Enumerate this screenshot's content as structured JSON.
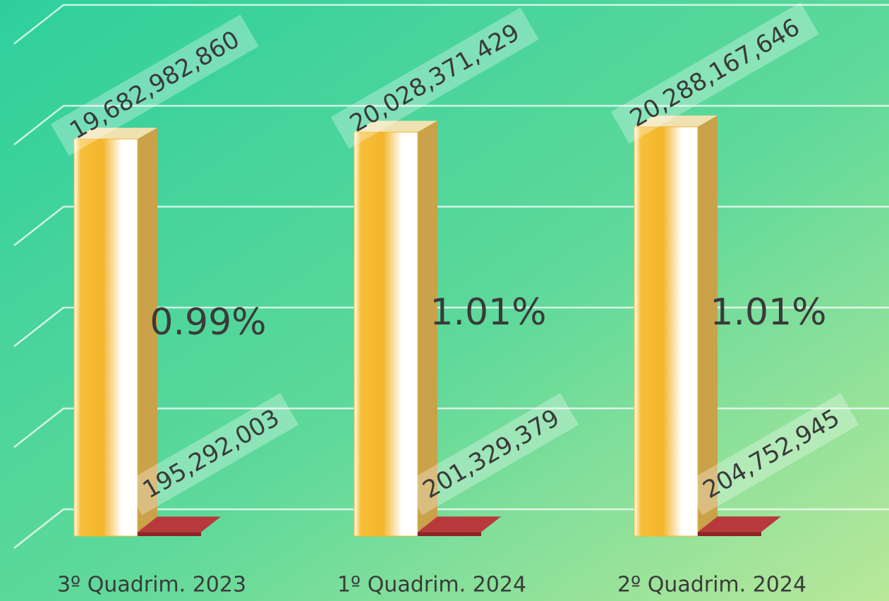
{
  "chart_data": {
    "type": "bar",
    "categories": [
      "3º Quadrim. 2023",
      "1º Quadrim. 2024",
      "2º Quadrim. 2024"
    ],
    "series": [
      {
        "color": "#f2b52c",
        "values": [
          19682982860,
          20028371429,
          20288167646
        ],
        "value_labels": [
          "19,682,982,860",
          "20,028,371,429",
          "20,288,167,646"
        ]
      },
      {
        "color": "#b8393b",
        "values": [
          195292003,
          201329379,
          204752945
        ],
        "value_labels": [
          "195,292,003",
          "201,329,379",
          "204,752,945"
        ]
      }
    ],
    "ratios": {
      "values": [
        0.99,
        1.01,
        1.01
      ],
      "value_labels": [
        "0.99%",
        "1.01%",
        "1.01%"
      ]
    },
    "ylim": [
      0,
      25000000000
    ],
    "yticks": [
      0,
      5000000000,
      10000000000,
      15000000000,
      20000000000,
      25000000000
    ],
    "grid": true
  }
}
